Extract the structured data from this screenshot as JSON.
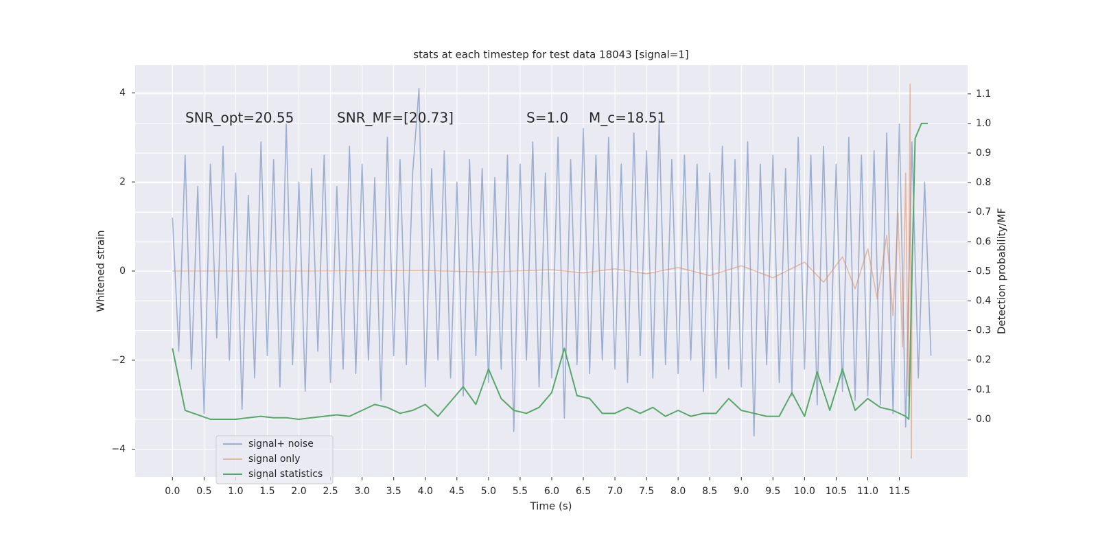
{
  "chart_data": {
    "type": "line",
    "title": "stats at each timestep for test data 18043 [signal=1]",
    "xlabel": "Time (s)",
    "ylabel": "Whitened strain",
    "y2label": "Detection probability/MF",
    "annotations": [
      "SNR_opt=20.55",
      "SNR_MF=[20.73]",
      "S=1.0",
      "M_c=18.51"
    ],
    "grid": true,
    "legend": "lower left",
    "xlim": [
      -0.59,
      12.58
    ],
    "ylim": [
      -4.62,
      4.62
    ],
    "y2lim": [
      -0.195,
      1.197
    ],
    "xticks": [
      {
        "value": 0,
        "label": "0.0"
      },
      {
        "value": 0.5,
        "label": "0.5"
      },
      {
        "value": 1,
        "label": "1.0"
      },
      {
        "value": 1.5,
        "label": "1.5"
      },
      {
        "value": 2,
        "label": "2.0"
      },
      {
        "value": 2.5,
        "label": "2.5"
      },
      {
        "value": 3,
        "label": "3.0"
      },
      {
        "value": 3.5,
        "label": "3.5"
      },
      {
        "value": 4,
        "label": "4.0"
      },
      {
        "value": 4.5,
        "label": "4.5"
      },
      {
        "value": 5,
        "label": "5.0"
      },
      {
        "value": 5.5,
        "label": "5.5"
      },
      {
        "value": 6,
        "label": "6.0"
      },
      {
        "value": 6.5,
        "label": "6.5"
      },
      {
        "value": 7,
        "label": "7.0"
      },
      {
        "value": 7.5,
        "label": "7.5"
      },
      {
        "value": 8,
        "label": "8.0"
      },
      {
        "value": 8.5,
        "label": "8.5"
      },
      {
        "value": 9,
        "label": "9.0"
      },
      {
        "value": 9.5,
        "label": "9.5"
      },
      {
        "value": 10,
        "label": "10.0"
      },
      {
        "value": 10.5,
        "label": "10.5"
      },
      {
        "value": 11,
        "label": "11.0"
      },
      {
        "value": 11.5,
        "label": "11.5"
      }
    ],
    "yticks": [
      {
        "value": -4,
        "label": "−4"
      },
      {
        "value": -2,
        "label": "−2"
      },
      0,
      2,
      4
    ],
    "y2ticks": [
      {
        "value": 0,
        "label": "0.0"
      },
      {
        "value": 0.1,
        "label": "0.1"
      },
      {
        "value": 0.2,
        "label": "0.2"
      },
      {
        "value": 0.3,
        "label": "0.3"
      },
      {
        "value": 0.4,
        "label": "0.4"
      },
      {
        "value": 0.5,
        "label": "0.5"
      },
      {
        "value": 0.6,
        "label": "0.6"
      },
      {
        "value": 0.7,
        "label": "0.7"
      },
      {
        "value": 0.8,
        "label": "0.8"
      },
      {
        "value": 0.9,
        "label": "0.9"
      },
      {
        "value": 1.0,
        "label": "1.0"
      },
      {
        "value": 1.1,
        "label": "1.1"
      }
    ],
    "series": [
      {
        "name": "signal+ noise",
        "color": "#4c72b0",
        "axis": "y",
        "x": [
          0,
          0.1,
          0.2,
          0.3,
          0.4,
          0.5,
          0.6,
          0.7,
          0.8,
          0.9,
          1,
          1.1,
          1.2,
          1.3,
          1.4,
          1.5,
          1.6,
          1.7,
          1.8,
          1.9,
          2,
          2.1,
          2.2,
          2.3,
          2.4,
          2.5,
          2.6,
          2.7,
          2.8,
          2.9,
          3,
          3.1,
          3.2,
          3.3,
          3.4,
          3.5,
          3.6,
          3.7,
          3.8,
          3.9,
          4,
          4.1,
          4.2,
          4.3,
          4.4,
          4.5,
          4.6,
          4.7,
          4.8,
          4.9,
          5,
          5.1,
          5.2,
          5.3,
          5.4,
          5.5,
          5.6,
          5.7,
          5.8,
          5.9,
          6,
          6.1,
          6.2,
          6.3,
          6.4,
          6.5,
          6.6,
          6.7,
          6.8,
          6.9,
          7,
          7.1,
          7.2,
          7.3,
          7.4,
          7.5,
          7.6,
          7.7,
          7.8,
          7.9,
          8,
          8.1,
          8.2,
          8.3,
          8.4,
          8.5,
          8.6,
          8.7,
          8.8,
          8.9,
          9,
          9.1,
          9.2,
          9.3,
          9.4,
          9.5,
          9.6,
          9.7,
          9.8,
          9.9,
          10,
          10.1,
          10.2,
          10.3,
          10.4,
          10.5,
          10.6,
          10.7,
          10.8,
          10.9,
          11,
          11.1,
          11.2,
          11.3,
          11.4,
          11.5,
          11.6,
          11.7,
          11.8,
          11.9,
          12
        ],
        "values": [
          1.2,
          -1.8,
          2.6,
          -2.2,
          1.9,
          -3.2,
          2.4,
          -1.5,
          2.8,
          -2.0,
          2.2,
          -3.1,
          1.7,
          -2.4,
          2.9,
          -1.9,
          2.5,
          -2.6,
          3.3,
          -2.1,
          2.0,
          -2.7,
          2.3,
          -1.8,
          2.6,
          -2.5,
          1.9,
          -2.2,
          2.8,
          -2.3,
          2.4,
          -2.0,
          2.1,
          -2.9,
          3.0,
          -1.9,
          2.5,
          -2.1,
          2.2,
          4.1,
          -2.6,
          2.3,
          -2.0,
          2.7,
          -2.4,
          2.0,
          -2.8,
          2.5,
          -1.9,
          2.3,
          -2.5,
          2.1,
          -2.2,
          2.6,
          -3.6,
          2.4,
          -2.0,
          2.9,
          -2.6,
          2.2,
          -2.4,
          3.0,
          -3.3,
          2.5,
          -2.1,
          3.2,
          -2.3,
          2.6,
          -2.0,
          3.0,
          -2.2,
          2.4,
          -2.5,
          3.1,
          -1.9,
          2.7,
          -2.4,
          3.4,
          -2.1,
          2.5,
          -2.3,
          2.6,
          -2.0,
          2.4,
          -2.7,
          2.2,
          -2.4,
          2.8,
          -2.2,
          2.5,
          -2.6,
          2.9,
          -3.7,
          2.4,
          -2.1,
          2.6,
          -2.5,
          2.3,
          -2.8,
          3.0,
          -2.2,
          2.6,
          -3.0,
          2.8,
          -2.5,
          2.4,
          -2.7,
          3.0,
          -2.9,
          2.6,
          -2.8,
          2.7,
          -3.0,
          3.1,
          -3.2,
          3.3,
          -3.5,
          2.9,
          -2.4,
          2.0,
          -1.9
        ]
      },
      {
        "name": "signal only",
        "color": "#dd8452",
        "axis": "y",
        "x": [
          0,
          2,
          4,
          5,
          6,
          6.5,
          7,
          7.5,
          8,
          8.5,
          9,
          9.5,
          10,
          10.3,
          10.6,
          10.8,
          11,
          11.15,
          11.3,
          11.4,
          11.48,
          11.55,
          11.6,
          11.64,
          11.67,
          11.69,
          11.7
        ],
        "values": [
          0,
          0,
          0.01,
          -0.02,
          0.03,
          -0.04,
          0.05,
          -0.06,
          0.08,
          -0.1,
          0.12,
          -0.15,
          0.2,
          -0.25,
          0.32,
          -0.4,
          0.5,
          -0.62,
          0.8,
          -1.0,
          1.3,
          -1.7,
          2.2,
          -2.8,
          4.2,
          -4.2,
          0
        ]
      },
      {
        "name": "signal statistics",
        "color": "#55a868",
        "axis": "y2",
        "x": [
          0,
          0.2,
          0.4,
          0.6,
          0.8,
          1,
          1.2,
          1.4,
          1.6,
          1.8,
          2,
          2.2,
          2.4,
          2.6,
          2.8,
          3,
          3.2,
          3.4,
          3.6,
          3.8,
          4,
          4.2,
          4.4,
          4.6,
          4.8,
          5,
          5.2,
          5.4,
          5.6,
          5.8,
          6,
          6.2,
          6.4,
          6.6,
          6.8,
          7,
          7.2,
          7.4,
          7.6,
          7.8,
          8,
          8.2,
          8.4,
          8.6,
          8.8,
          9,
          9.2,
          9.4,
          9.6,
          9.8,
          10,
          10.2,
          10.4,
          10.6,
          10.8,
          11,
          11.2,
          11.4,
          11.6,
          11.65,
          11.7,
          11.75,
          11.85,
          11.95
        ],
        "values": [
          0.24,
          0.03,
          0.015,
          0,
          0,
          0,
          0.005,
          0.01,
          0.005,
          0.005,
          0,
          0.005,
          0.01,
          0.015,
          0.01,
          0.03,
          0.05,
          0.04,
          0.02,
          0.03,
          0.05,
          0.01,
          0.06,
          0.11,
          0.05,
          0.17,
          0.07,
          0.03,
          0.02,
          0.04,
          0.09,
          0.24,
          0.08,
          0.07,
          0.02,
          0.02,
          0.04,
          0.02,
          0.04,
          0.01,
          0.03,
          0.01,
          0.02,
          0.02,
          0.07,
          0.03,
          0.02,
          0.01,
          0.01,
          0.09,
          0.01,
          0.16,
          0.03,
          0.17,
          0.03,
          0.07,
          0.04,
          0.03,
          0.01,
          0,
          0.5,
          0.95,
          1.0,
          1.0
        ]
      }
    ]
  }
}
